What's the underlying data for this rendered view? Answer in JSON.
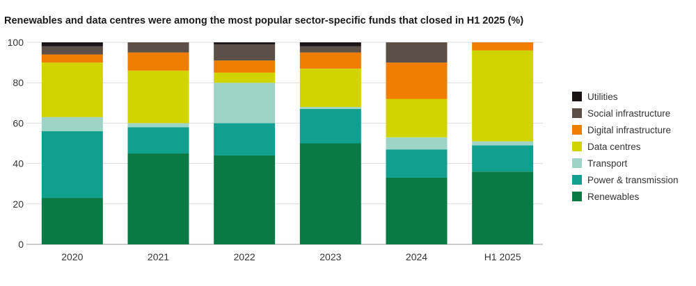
{
  "chart_data": {
    "type": "bar",
    "stacked": true,
    "title": "Renewables and data centres were among the most popular sector-specific funds that closed in H1 2025 (%)",
    "xlabel": "",
    "ylabel": "",
    "ylim": [
      0,
      100
    ],
    "yticks": [
      0,
      20,
      40,
      60,
      80,
      100
    ],
    "grid": true,
    "legend_position": "right",
    "categories": [
      "2020",
      "2021",
      "2022",
      "2023",
      "2024",
      "H1 2025"
    ],
    "series": [
      {
        "name": "Renewables",
        "color": "#0a7a45",
        "values": [
          23,
          45,
          44,
          50,
          33,
          36
        ]
      },
      {
        "name": "Power & transmission",
        "color": "#11a08f",
        "values": [
          33,
          13,
          16,
          17,
          14,
          13
        ]
      },
      {
        "name": "Transport",
        "color": "#9ed4c6",
        "values": [
          7,
          2,
          20,
          1,
          6,
          2
        ]
      },
      {
        "name": "Data centres",
        "color": "#d2d400",
        "values": [
          27,
          26,
          5,
          19,
          19,
          45
        ]
      },
      {
        "name": "Digital infrastructure",
        "color": "#ef7d00",
        "values": [
          4,
          9,
          6,
          8,
          18,
          4
        ]
      },
      {
        "name": "Social infrastructure",
        "color": "#5b4f48",
        "values": [
          4,
          5,
          8,
          3,
          10,
          0
        ]
      },
      {
        "name": "Utilities",
        "color": "#1a1414",
        "values": [
          2,
          0,
          1,
          2,
          0,
          0
        ]
      }
    ],
    "legend_order": [
      "Utilities",
      "Social infrastructure",
      "Digital infrastructure",
      "Data centres",
      "Transport",
      "Power & transmission",
      "Renewables"
    ]
  }
}
